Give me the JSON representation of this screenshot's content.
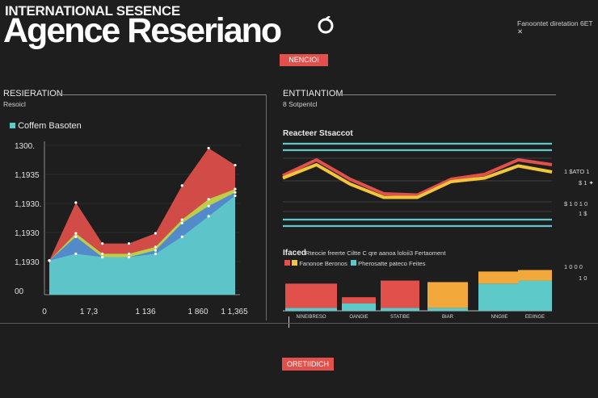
{
  "header": {
    "subtitle": "INTERNATIONAL SESENCE",
    "title": "Agence Reseriano",
    "top_right": "Fanoontet diretation 6ET ✕"
  },
  "buttons": {
    "top": "NENCIOI",
    "bottom": "ORETIIDICH"
  },
  "left_panel": {
    "label": "RESIERATION",
    "sublabel": "Resoicl",
    "legend": "Coffem Basoten"
  },
  "right_panel": {
    "label": "ENTTIANTIOM",
    "sublabel": "8 Sotpentcl",
    "chart_title": "Reacteer Stsaccot",
    "right_labels": [
      "1 $ATO 1",
      "$ 1 ✦",
      "$ 1 0 1 0",
      "1 $",
      "1 0 0 0",
      "1 0"
    ],
    "bar_section_title": "Ifaced",
    "bar_section_caption": "Rteocie freerte Ciltte C qre aanoa loloii3 Fertaoment",
    "bar_legend": [
      "Fanonoe Beronos",
      "Pherosatte pateco Feites"
    ],
    "bar_labels": [
      "NINEIBRESO",
      "OANGIE",
      "STATIBE",
      "BIAR",
      "NNGIIE",
      "EEIINGE"
    ]
  },
  "colors": {
    "red": "#e2504b",
    "yellow": "#f2c63a",
    "orange": "#f2a83a",
    "teal": "#5ec9c9",
    "blue": "#4a86d6",
    "lime": "#b8d84a"
  },
  "chart_data": [
    {
      "type": "area",
      "ytick_labels": [
        "1300.",
        "1,1935",
        "1,1930.",
        "1,1930",
        "1,1930",
        "00"
      ],
      "xtick_labels": [
        "0",
        "1 7,3",
        "1 136",
        "1 860",
        "1 1,365"
      ],
      "x": [
        0,
        1,
        2,
        3,
        4,
        5,
        6,
        7
      ],
      "series": [
        {
          "color": "teal",
          "values": [
            1,
            1.2,
            1.1,
            1.1,
            1.2,
            1.7,
            2.3,
            2.9
          ]
        },
        {
          "color": "blue",
          "values": [
            1,
            1.7,
            1.1,
            1.1,
            1.3,
            2.1,
            2.6,
            3.0
          ]
        },
        {
          "color": "lime",
          "values": [
            1,
            1.8,
            1.2,
            1.2,
            1.4,
            2.2,
            2.8,
            3.1
          ]
        },
        {
          "color": "red",
          "values": [
            1,
            2.7,
            1.5,
            1.5,
            1.8,
            3.2,
            4.3,
            3.8
          ]
        }
      ]
    },
    {
      "type": "line",
      "x": [
        0,
        1,
        2,
        3,
        4,
        5,
        6,
        7,
        8
      ],
      "series": [
        {
          "color": "red",
          "values": [
            4.3,
            5.6,
            4.0,
            2.8,
            2.7,
            4.0,
            4.4,
            5.6,
            5.2
          ]
        },
        {
          "color": "yellow",
          "values": [
            4.1,
            5.2,
            3.6,
            2.5,
            2.5,
            3.8,
            4.1,
            5.1,
            4.6
          ]
        }
      ]
    },
    {
      "type": "bar",
      "categories": [
        "NINEIBRESO",
        "OANGIE",
        "STATIBE",
        "BIAR",
        "NNGIIE",
        "EEIINGE"
      ],
      "series": [
        {
          "color": "teal",
          "values": [
            0.1,
            0.25,
            0.1,
            0.1,
            0.9,
            1.0
          ]
        },
        {
          "color": "red",
          "values": [
            0.8,
            0.2,
            0.9,
            0.0,
            0.0,
            0.0
          ]
        },
        {
          "color": "orange",
          "values": [
            0.0,
            0.0,
            0.0,
            0.85,
            0.4,
            0.35
          ]
        }
      ]
    }
  ]
}
